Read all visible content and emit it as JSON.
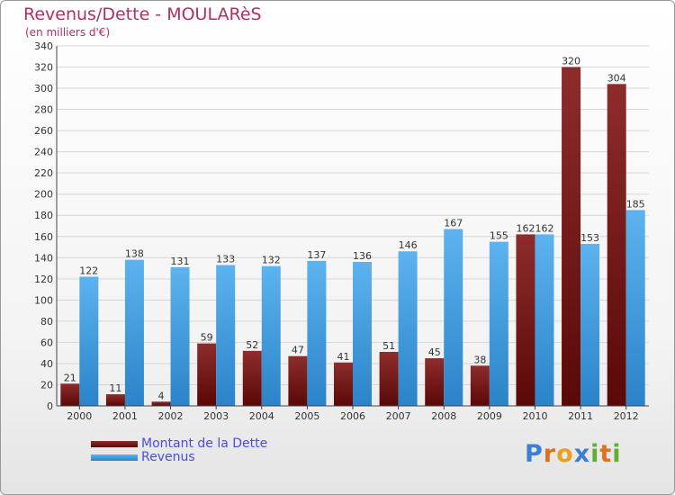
{
  "chart_data": {
    "type": "bar",
    "title": "Revenus/Dette - MOULARèS",
    "subtitle": "(en milliers d'€)",
    "categories": [
      "2000",
      "2001",
      "2002",
      "2003",
      "2004",
      "2005",
      "2006",
      "2007",
      "2008",
      "2009",
      "2010",
      "2011",
      "2012"
    ],
    "series": [
      {
        "name": "Montant de la Dette",
        "color": "#7a1a1a",
        "values": [
          21,
          11,
          4,
          59,
          52,
          47,
          41,
          51,
          45,
          38,
          162,
          320,
          304
        ]
      },
      {
        "name": "Revenus",
        "color": "#4da6e8",
        "values": [
          122,
          138,
          131,
          133,
          132,
          137,
          136,
          146,
          167,
          155,
          162,
          153,
          185
        ]
      }
    ],
    "ylim": [
      0,
      340
    ],
    "yticks": [
      0,
      20,
      40,
      60,
      80,
      100,
      120,
      140,
      160,
      180,
      200,
      220,
      240,
      260,
      280,
      300,
      320,
      340
    ],
    "grid": true,
    "legend_position": "bottom-left"
  },
  "logo": {
    "letters": [
      "P",
      "r",
      "o",
      "x",
      "i",
      "t",
      "i"
    ],
    "colors": [
      "#3a7fd5",
      "#e07020",
      "#e8a020",
      "#3a7fd5",
      "#60b030",
      "#e07020",
      "#60b030"
    ]
  }
}
